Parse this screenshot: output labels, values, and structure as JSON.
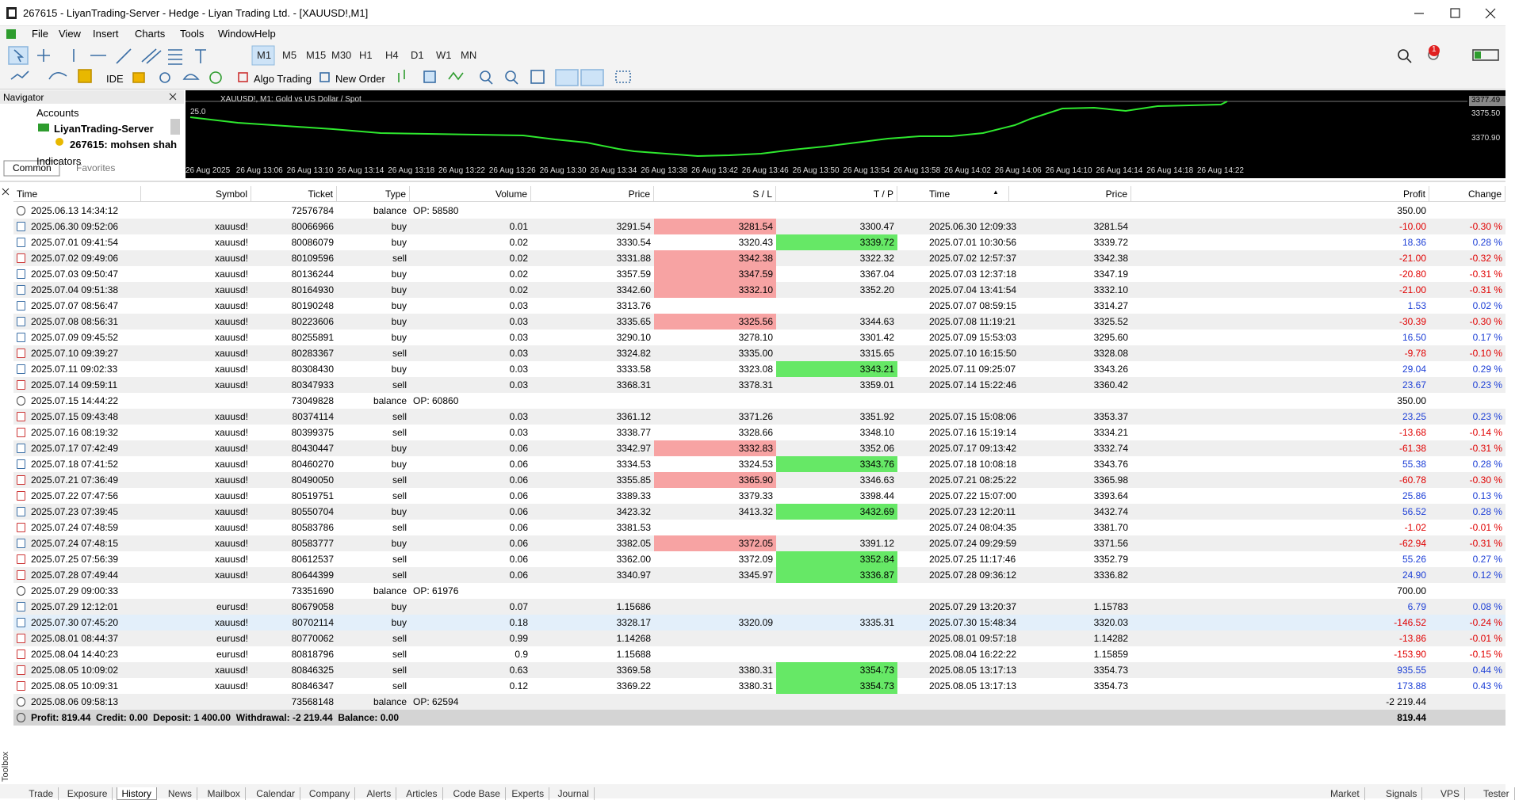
{
  "window": {
    "title": "267615 - LiyanTrading-Server - Hedge - Liyan Trading Ltd. - [XAUUSD!,M1]"
  },
  "menu": [
    "File",
    "View",
    "Insert",
    "Charts",
    "Tools",
    "Window",
    "Help"
  ],
  "toolbar": {
    "timeframes": [
      "M1",
      "M5",
      "M15",
      "M30",
      "H1",
      "H4",
      "D1",
      "W1",
      "MN"
    ],
    "ide": "IDE",
    "algo": "Algo Trading",
    "new_order": "New Order",
    "badge": "1"
  },
  "navigator": {
    "title": "Navigator",
    "accounts": "Accounts",
    "server": "LiyanTrading-Server",
    "account": "267615: mohsen shah",
    "indicators": "Indicators",
    "tabs": [
      "Common",
      "Favorites"
    ]
  },
  "chart": {
    "title": "XAUUSD!, M1:  Gold vs US Dollar / Spot",
    "corner": "25.0",
    "prices": [
      "3377.49",
      "3375.50",
      "3370.90"
    ],
    "times": [
      "26 Aug 2025",
      "26 Aug 13:06",
      "26 Aug 13:10",
      "26 Aug 13:14",
      "26 Aug 13:18",
      "26 Aug 13:22",
      "26 Aug 13:26",
      "26 Aug 13:30",
      "26 Aug 13:34",
      "26 Aug 13:38",
      "26 Aug 13:42",
      "26 Aug 13:46",
      "26 Aug 13:50",
      "26 Aug 13:54",
      "26 Aug 13:58",
      "26 Aug 14:02",
      "26 Aug 14:06",
      "26 Aug 14:10",
      "26 Aug 14:14",
      "26 Aug 14:18",
      "26 Aug 14:22"
    ]
  },
  "history": {
    "columns": [
      "Time",
      "Symbol",
      "Ticket",
      "Type",
      "Volume",
      "Price",
      "S / L",
      "T / P",
      "Time",
      "Price",
      "Profit",
      "Change"
    ],
    "rows": [
      {
        "time": "2025.06.13 14:34:12",
        "ticket": "72576784",
        "type": "balance",
        "comment": "OP: 58580",
        "profit": "350.00"
      },
      {
        "time": "2025.06.30 09:52:06",
        "symbol": "xauusd!",
        "ticket": "80066966",
        "type": "buy",
        "volume": "0.01",
        "price": "3291.54",
        "sl": "3281.54",
        "tp": "3300.47",
        "close_time": "2025.06.30 12:09:33",
        "close_price": "3281.54",
        "profit": "-10.00",
        "change": "-0.30 %",
        "hit": "sl"
      },
      {
        "time": "2025.07.01 09:41:54",
        "symbol": "xauusd!",
        "ticket": "80086079",
        "type": "buy",
        "volume": "0.02",
        "price": "3330.54",
        "sl": "3320.43",
        "tp": "3339.72",
        "close_time": "2025.07.01 10:30:56",
        "close_price": "3339.72",
        "profit": "18.36",
        "change": "0.28 %",
        "hit": "tp"
      },
      {
        "time": "2025.07.02 09:49:06",
        "symbol": "xauusd!",
        "ticket": "80109596",
        "type": "sell",
        "volume": "0.02",
        "price": "3331.88",
        "sl": "3342.38",
        "tp": "3322.32",
        "close_time": "2025.07.02 12:57:37",
        "close_price": "3342.38",
        "profit": "-21.00",
        "change": "-0.32 %",
        "hit": "sl"
      },
      {
        "time": "2025.07.03 09:50:47",
        "symbol": "xauusd!",
        "ticket": "80136244",
        "type": "buy",
        "volume": "0.02",
        "price": "3357.59",
        "sl": "3347.59",
        "tp": "3367.04",
        "close_time": "2025.07.03 12:37:18",
        "close_price": "3347.19",
        "profit": "-20.80",
        "change": "-0.31 %",
        "hit": "sl"
      },
      {
        "time": "2025.07.04 09:51:38",
        "symbol": "xauusd!",
        "ticket": "80164930",
        "type": "buy",
        "volume": "0.02",
        "price": "3342.60",
        "sl": "3332.10",
        "tp": "3352.20",
        "close_time": "2025.07.04 13:41:54",
        "close_price": "3332.10",
        "profit": "-21.00",
        "change": "-0.31 %",
        "hit": "sl"
      },
      {
        "time": "2025.07.07 08:56:47",
        "symbol": "xauusd!",
        "ticket": "80190248",
        "type": "buy",
        "volume": "0.03",
        "price": "3313.76",
        "close_time": "2025.07.07 08:59:15",
        "close_price": "3314.27",
        "profit": "1.53",
        "change": "0.02 %"
      },
      {
        "time": "2025.07.08 08:56:31",
        "symbol": "xauusd!",
        "ticket": "80223606",
        "type": "buy",
        "volume": "0.03",
        "price": "3335.65",
        "sl": "3325.56",
        "tp": "3344.63",
        "close_time": "2025.07.08 11:19:21",
        "close_price": "3325.52",
        "profit": "-30.39",
        "change": "-0.30 %",
        "hit": "sl"
      },
      {
        "time": "2025.07.09 09:45:52",
        "symbol": "xauusd!",
        "ticket": "80255891",
        "type": "buy",
        "volume": "0.03",
        "price": "3290.10",
        "sl": "3278.10",
        "tp": "3301.42",
        "close_time": "2025.07.09 15:53:03",
        "close_price": "3295.60",
        "profit": "16.50",
        "change": "0.17 %"
      },
      {
        "time": "2025.07.10 09:39:27",
        "symbol": "xauusd!",
        "ticket": "80283367",
        "type": "sell",
        "volume": "0.03",
        "price": "3324.82",
        "sl": "3335.00",
        "tp": "3315.65",
        "close_time": "2025.07.10 16:15:50",
        "close_price": "3328.08",
        "profit": "-9.78",
        "change": "-0.10 %"
      },
      {
        "time": "2025.07.11 09:02:33",
        "symbol": "xauusd!",
        "ticket": "80308430",
        "type": "buy",
        "volume": "0.03",
        "price": "3333.58",
        "sl": "3323.08",
        "tp": "3343.21",
        "close_time": "2025.07.11 09:25:07",
        "close_price": "3343.26",
        "profit": "29.04",
        "change": "0.29 %",
        "hit": "tp"
      },
      {
        "time": "2025.07.14 09:59:11",
        "symbol": "xauusd!",
        "ticket": "80347933",
        "type": "sell",
        "volume": "0.03",
        "price": "3368.31",
        "sl": "3378.31",
        "tp": "3359.01",
        "close_time": "2025.07.14 15:22:46",
        "close_price": "3360.42",
        "profit": "23.67",
        "change": "0.23 %"
      },
      {
        "time": "2025.07.15 14:44:22",
        "ticket": "73049828",
        "type": "balance",
        "comment": "OP: 60860",
        "profit": "350.00"
      },
      {
        "time": "2025.07.15 09:43:48",
        "symbol": "xauusd!",
        "ticket": "80374114",
        "type": "sell",
        "volume": "0.03",
        "price": "3361.12",
        "sl": "3371.26",
        "tp": "3351.92",
        "close_time": "2025.07.15 15:08:06",
        "close_price": "3353.37",
        "profit": "23.25",
        "change": "0.23 %"
      },
      {
        "time": "2025.07.16 08:19:32",
        "symbol": "xauusd!",
        "ticket": "80399375",
        "type": "sell",
        "volume": "0.03",
        "price": "3338.77",
        "sl": "3328.66",
        "tp": "3348.10",
        "close_time": "2025.07.16 15:19:14",
        "close_price": "3334.21",
        "profit": "-13.68",
        "change": "-0.14 %"
      },
      {
        "time": "2025.07.17 07:42:49",
        "symbol": "xauusd!",
        "ticket": "80430447",
        "type": "buy",
        "volume": "0.06",
        "price": "3342.97",
        "sl": "3332.83",
        "tp": "3352.06",
        "close_time": "2025.07.17 09:13:42",
        "close_price": "3332.74",
        "profit": "-61.38",
        "change": "-0.31 %",
        "hit": "sl"
      },
      {
        "time": "2025.07.18 07:41:52",
        "symbol": "xauusd!",
        "ticket": "80460270",
        "type": "buy",
        "volume": "0.06",
        "price": "3334.53",
        "sl": "3324.53",
        "tp": "3343.76",
        "close_time": "2025.07.18 10:08:18",
        "close_price": "3343.76",
        "profit": "55.38",
        "change": "0.28 %",
        "hit": "tp"
      },
      {
        "time": "2025.07.21 07:36:49",
        "symbol": "xauusd!",
        "ticket": "80490050",
        "type": "sell",
        "volume": "0.06",
        "price": "3355.85",
        "sl": "3365.90",
        "tp": "3346.63",
        "close_time": "2025.07.21 08:25:22",
        "close_price": "3365.98",
        "profit": "-60.78",
        "change": "-0.30 %",
        "hit": "sl"
      },
      {
        "time": "2025.07.22 07:47:56",
        "symbol": "xauusd!",
        "ticket": "80519751",
        "type": "sell",
        "volume": "0.06",
        "price": "3389.33",
        "sl": "3379.33",
        "tp": "3398.44",
        "close_time": "2025.07.22 15:07:00",
        "close_price": "3393.64",
        "profit": "25.86",
        "change": "0.13 %"
      },
      {
        "time": "2025.07.23 07:39:45",
        "symbol": "xauusd!",
        "ticket": "80550704",
        "type": "buy",
        "volume": "0.06",
        "price": "3423.32",
        "sl": "3413.32",
        "tp": "3432.69",
        "close_time": "2025.07.23 12:20:11",
        "close_price": "3432.74",
        "profit": "56.52",
        "change": "0.28 %",
        "hit": "tp"
      },
      {
        "time": "2025.07.24 07:48:59",
        "symbol": "xauusd!",
        "ticket": "80583786",
        "type": "sell",
        "volume": "0.06",
        "price": "3381.53",
        "close_time": "2025.07.24 08:04:35",
        "close_price": "3381.70",
        "profit": "-1.02",
        "change": "-0.01 %"
      },
      {
        "time": "2025.07.24 07:48:15",
        "symbol": "xauusd!",
        "ticket": "80583777",
        "type": "buy",
        "volume": "0.06",
        "price": "3382.05",
        "sl": "3372.05",
        "tp": "3391.12",
        "close_time": "2025.07.24 09:29:59",
        "close_price": "3371.56",
        "profit": "-62.94",
        "change": "-0.31 %",
        "hit": "sl"
      },
      {
        "time": "2025.07.25 07:56:39",
        "symbol": "xauusd!",
        "ticket": "80612537",
        "type": "sell",
        "volume": "0.06",
        "price": "3362.00",
        "sl": "3372.09",
        "tp": "3352.84",
        "close_time": "2025.07.25 11:17:46",
        "close_price": "3352.79",
        "profit": "55.26",
        "change": "0.27 %",
        "hit": "tp"
      },
      {
        "time": "2025.07.28 07:49:44",
        "symbol": "xauusd!",
        "ticket": "80644399",
        "type": "sell",
        "volume": "0.06",
        "price": "3340.97",
        "sl": "3345.97",
        "tp": "3336.87",
        "close_time": "2025.07.28 09:36:12",
        "close_price": "3336.82",
        "profit": "24.90",
        "change": "0.12 %",
        "hit": "tp"
      },
      {
        "time": "2025.07.29 09:00:33",
        "ticket": "73351690",
        "type": "balance",
        "comment": "OP: 61976",
        "profit": "700.00"
      },
      {
        "time": "2025.07.29 12:12:01",
        "symbol": "eurusd!",
        "ticket": "80679058",
        "type": "buy",
        "volume": "0.07",
        "price": "1.15686",
        "close_time": "2025.07.29 13:20:37",
        "close_price": "1.15783",
        "profit": "6.79",
        "change": "0.08 %"
      },
      {
        "time": "2025.07.30 07:45:20",
        "symbol": "xauusd!",
        "ticket": "80702114",
        "type": "buy",
        "volume": "0.18",
        "price": "3328.17",
        "sl": "3320.09",
        "tp": "3335.31",
        "close_time": "2025.07.30 15:48:34",
        "close_price": "3320.03",
        "profit": "-146.52",
        "change": "-0.24 %",
        "selected": true
      },
      {
        "time": "2025.08.01 08:44:37",
        "symbol": "eurusd!",
        "ticket": "80770062",
        "type": "sell",
        "volume": "0.99",
        "price": "1.14268",
        "close_time": "2025.08.01 09:57:18",
        "close_price": "1.14282",
        "profit": "-13.86",
        "change": "-0.01 %"
      },
      {
        "time": "2025.08.04 14:40:23",
        "symbol": "eurusd!",
        "ticket": "80818796",
        "type": "sell",
        "volume": "0.9",
        "price": "1.15688",
        "close_time": "2025.08.04 16:22:22",
        "close_price": "1.15859",
        "profit": "-153.90",
        "change": "-0.15 %"
      },
      {
        "time": "2025.08.05 10:09:02",
        "symbol": "xauusd!",
        "ticket": "80846325",
        "type": "sell",
        "volume": "0.63",
        "price": "3369.58",
        "sl": "3380.31",
        "tp": "3354.73",
        "close_time": "2025.08.05 13:17:13",
        "close_price": "3354.73",
        "profit": "935.55",
        "change": "0.44 %",
        "hit": "tp"
      },
      {
        "time": "2025.08.05 10:09:31",
        "symbol": "xauusd!",
        "ticket": "80846347",
        "type": "sell",
        "volume": "0.12",
        "price": "3369.22",
        "sl": "3380.31",
        "tp": "3354.73",
        "close_time": "2025.08.05 13:17:13",
        "close_price": "3354.73",
        "profit": "173.88",
        "change": "0.43 %",
        "hit": "tp"
      },
      {
        "time": "2025.08.06 09:58:13",
        "ticket": "73568148",
        "type": "balance",
        "comment": "OP: 62594",
        "profit": "-2 219.44"
      }
    ],
    "summary": {
      "text": "Profit: 819.44  Credit: 0.00  Deposit: 1 400.00  Withdrawal: -2 219.44  Balance: 0.00",
      "profit": "819.44"
    }
  },
  "bottom_tabs": [
    "Trade",
    "Exposure",
    "History",
    "News",
    "Mailbox",
    "Calendar",
    "Company",
    "Alerts",
    "Articles",
    "Code Base",
    "Experts",
    "Journal"
  ],
  "selected_tab": "History",
  "status_tabs": [
    "Market",
    "Signals",
    "VPS",
    "Tester"
  ],
  "toolbox": "Toolbox"
}
